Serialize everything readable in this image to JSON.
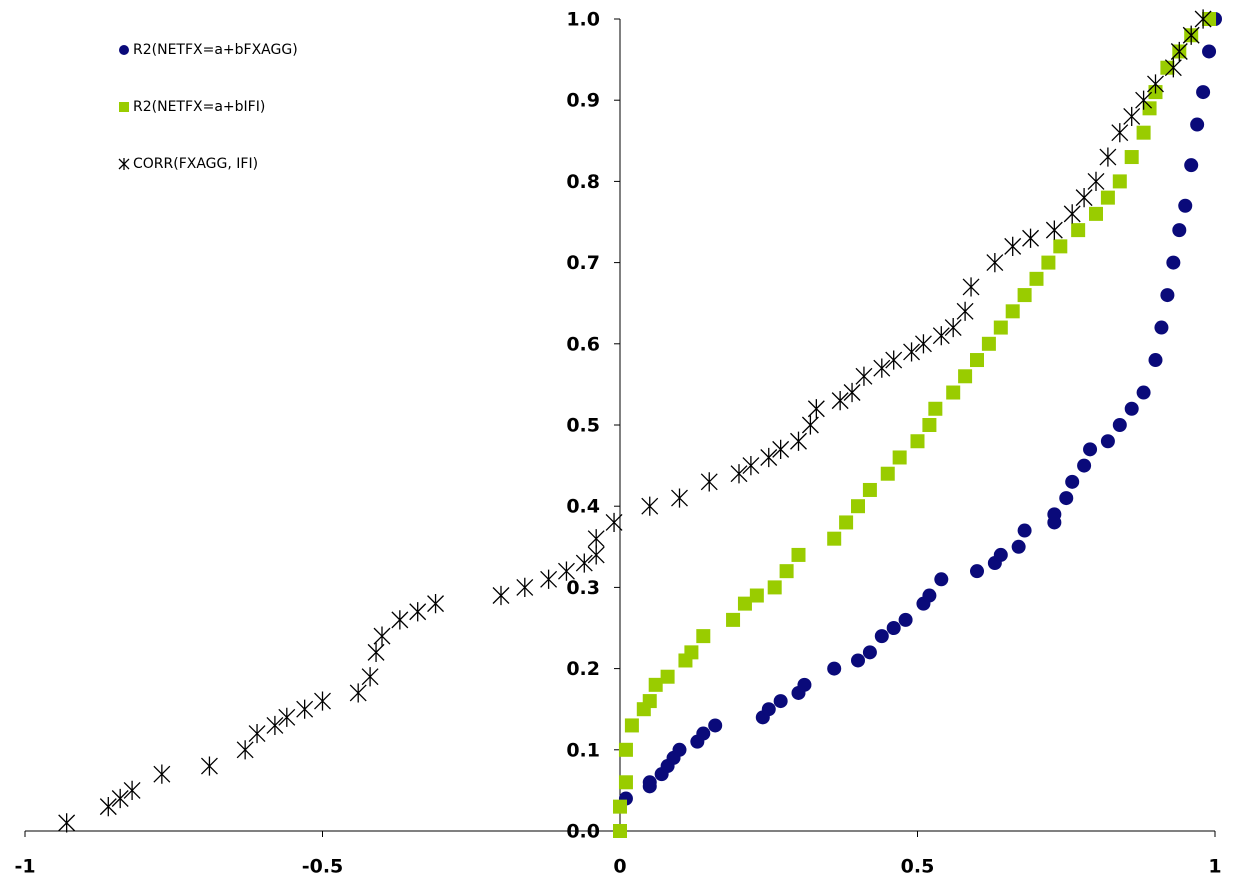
{
  "chart_data": {
    "type": "scatter",
    "xlim": [
      -1,
      1
    ],
    "ylim": [
      0,
      1
    ],
    "xticks": [
      -1,
      -0.5,
      0,
      0.5,
      1
    ],
    "yticks": [
      {
        "value": 0,
        "label": "0.0"
      },
      0.1,
      0.2,
      0.3,
      0.4,
      0.5,
      0.6,
      0.7,
      0.8,
      0.9,
      {
        "value": 1,
        "label": "1.0"
      }
    ],
    "legend": "upper left",
    "series": [
      {
        "name": "R2(NETFX=a+bFXAGG)",
        "color": "#0a0a7a",
        "marker": "circle",
        "x": [
          0.0,
          0.01,
          0.05,
          0.05,
          0.07,
          0.08,
          0.09,
          0.1,
          0.13,
          0.14,
          0.16,
          0.24,
          0.25,
          0.27,
          0.3,
          0.31,
          0.36,
          0.4,
          0.42,
          0.44,
          0.46,
          0.48,
          0.51,
          0.52,
          0.54,
          0.6,
          0.63,
          0.64,
          0.67,
          0.68,
          0.73,
          0.73,
          0.75,
          0.76,
          0.78,
          0.79,
          0.82,
          0.84,
          0.86,
          0.88,
          0.9,
          0.91,
          0.92,
          0.93,
          0.94,
          0.95,
          0.96,
          0.97,
          0.98,
          0.99,
          1.0
        ],
        "values": [
          0.0,
          0.04,
          0.055,
          0.06,
          0.07,
          0.08,
          0.09,
          0.1,
          0.11,
          0.12,
          0.13,
          0.14,
          0.15,
          0.16,
          0.17,
          0.18,
          0.2,
          0.21,
          0.22,
          0.24,
          0.25,
          0.26,
          0.28,
          0.29,
          0.31,
          0.32,
          0.33,
          0.34,
          0.35,
          0.37,
          0.38,
          0.39,
          0.41,
          0.43,
          0.45,
          0.47,
          0.48,
          0.5,
          0.52,
          0.54,
          0.58,
          0.62,
          0.66,
          0.7,
          0.74,
          0.77,
          0.82,
          0.87,
          0.91,
          0.96,
          1.0
        ]
      },
      {
        "name": "R2(NETFX=a+bIFI)",
        "color": "#99cc00",
        "marker": "square",
        "x": [
          0.0,
          0.0,
          0.01,
          0.01,
          0.02,
          0.04,
          0.05,
          0.06,
          0.08,
          0.11,
          0.12,
          0.14,
          0.19,
          0.21,
          0.23,
          0.26,
          0.28,
          0.3,
          0.36,
          0.38,
          0.4,
          0.42,
          0.45,
          0.47,
          0.5,
          0.52,
          0.53,
          0.56,
          0.58,
          0.6,
          0.62,
          0.64,
          0.66,
          0.68,
          0.7,
          0.72,
          0.74,
          0.77,
          0.8,
          0.82,
          0.84,
          0.86,
          0.88,
          0.89,
          0.9,
          0.92,
          0.94,
          0.96,
          0.99
        ],
        "values": [
          0.0,
          0.03,
          0.06,
          0.1,
          0.13,
          0.15,
          0.16,
          0.18,
          0.19,
          0.21,
          0.22,
          0.24,
          0.26,
          0.28,
          0.29,
          0.3,
          0.32,
          0.34,
          0.36,
          0.38,
          0.4,
          0.42,
          0.44,
          0.46,
          0.48,
          0.5,
          0.52,
          0.54,
          0.56,
          0.58,
          0.6,
          0.62,
          0.64,
          0.66,
          0.68,
          0.7,
          0.72,
          0.74,
          0.76,
          0.78,
          0.8,
          0.83,
          0.86,
          0.89,
          0.91,
          0.94,
          0.96,
          0.98,
          1.0
        ]
      },
      {
        "name": "CORR(FXAGG, IFI)",
        "color": "#000000",
        "marker": "asterisk",
        "x": [
          -0.93,
          -0.86,
          -0.84,
          -0.82,
          -0.77,
          -0.69,
          -0.63,
          -0.61,
          -0.58,
          -0.56,
          -0.53,
          -0.5,
          -0.44,
          -0.42,
          -0.41,
          -0.4,
          -0.37,
          -0.34,
          -0.31,
          -0.2,
          -0.16,
          -0.12,
          -0.09,
          -0.06,
          -0.04,
          -0.04,
          -0.01,
          0.05,
          0.1,
          0.15,
          0.2,
          0.22,
          0.25,
          0.27,
          0.3,
          0.32,
          0.33,
          0.37,
          0.39,
          0.41,
          0.44,
          0.46,
          0.49,
          0.51,
          0.54,
          0.56,
          0.58,
          0.59,
          0.63,
          0.66,
          0.69,
          0.73,
          0.76,
          0.78,
          0.8,
          0.82,
          0.84,
          0.86,
          0.88,
          0.9,
          0.93,
          0.94,
          0.96,
          0.98
        ],
        "values": [
          0.01,
          0.03,
          0.04,
          0.05,
          0.07,
          0.08,
          0.1,
          0.12,
          0.13,
          0.14,
          0.15,
          0.16,
          0.17,
          0.19,
          0.22,
          0.24,
          0.26,
          0.27,
          0.28,
          0.29,
          0.3,
          0.31,
          0.32,
          0.33,
          0.34,
          0.36,
          0.38,
          0.4,
          0.41,
          0.43,
          0.44,
          0.45,
          0.46,
          0.47,
          0.48,
          0.5,
          0.52,
          0.53,
          0.54,
          0.56,
          0.57,
          0.58,
          0.59,
          0.6,
          0.61,
          0.62,
          0.64,
          0.67,
          0.7,
          0.72,
          0.73,
          0.74,
          0.76,
          0.78,
          0.8,
          0.83,
          0.86,
          0.88,
          0.9,
          0.92,
          0.94,
          0.96,
          0.98,
          1.0
        ]
      }
    ]
  }
}
